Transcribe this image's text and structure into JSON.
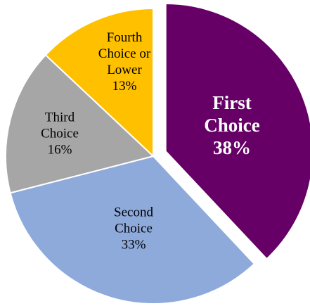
{
  "chart_data": {
    "type": "pie",
    "categories": [
      "First Choice",
      "Second Choice",
      "Third Choice",
      "Fourth Choice or Lower"
    ],
    "values": [
      38,
      33,
      16,
      13
    ],
    "value_labels": [
      "38%",
      "33%",
      "16%",
      "13%"
    ],
    "colors": [
      "#660066",
      "#8eaadb",
      "#a6a6a6",
      "#ffc000"
    ],
    "exploded": [
      true,
      false,
      false,
      false
    ]
  }
}
